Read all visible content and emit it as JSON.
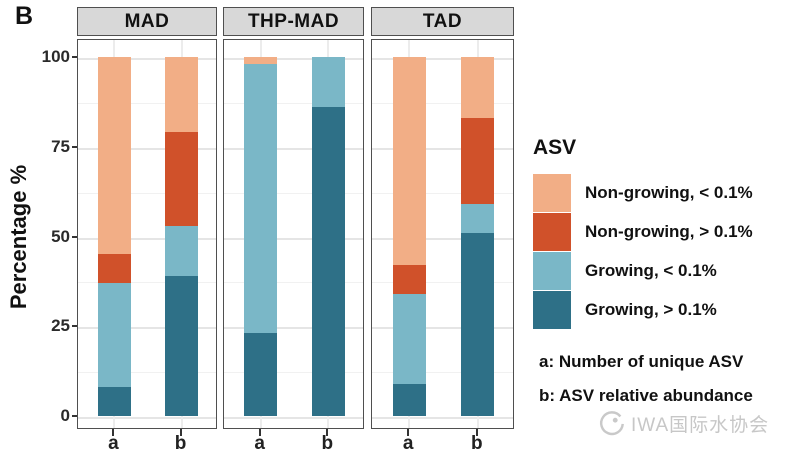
{
  "panel_label": "B",
  "notes": [
    "a: Number of unique ASV",
    "b: ASV relative abundance"
  ],
  "watermark": {
    "icon": "iwa-swirl-logo",
    "text": "IWA国际水协会",
    "color": "#c7c7c7"
  },
  "legend": {
    "title": "ASV",
    "items": [
      {
        "label": "Non-growing, < 0.1%",
        "color": "#F2AE86"
      },
      {
        "label": "Non-growing, > 0.1%",
        "color": "#D0512A"
      },
      {
        "label": "Growing, < 0.1%",
        "color": "#7AB7C7"
      },
      {
        "label": "Growing, > 0.1%",
        "color": "#2E7087"
      }
    ]
  },
  "chart_data": {
    "type": "bar",
    "stacked": true,
    "title": "",
    "ylabel": "Percentage %",
    "ylim": [
      0,
      100
    ],
    "yticks": [
      0,
      25,
      50,
      75,
      100
    ],
    "categories": [
      "a",
      "b"
    ],
    "legend_position": "right",
    "grid": {
      "major": true,
      "minor": true
    },
    "series_bottom_to_top": [
      {
        "name": "Growing, > 0.1%",
        "color": "#2E7087"
      },
      {
        "name": "Growing, < 0.1%",
        "color": "#7AB7C7"
      },
      {
        "name": "Non-growing, > 0.1%",
        "color": "#D0512A"
      },
      {
        "name": "Non-growing, < 0.1%",
        "color": "#F2AE86"
      }
    ],
    "facets": [
      {
        "label": "MAD",
        "bars": [
          {
            "x": "a",
            "values": [
              8,
              29,
              8,
              55
            ]
          },
          {
            "x": "b",
            "values": [
              39,
              14,
              26,
              21
            ]
          }
        ]
      },
      {
        "label": "THP-MAD",
        "bars": [
          {
            "x": "a",
            "values": [
              23,
              75,
              0,
              2
            ]
          },
          {
            "x": "b",
            "values": [
              86,
              14,
              0,
              0
            ]
          }
        ]
      },
      {
        "label": "TAD",
        "bars": [
          {
            "x": "a",
            "values": [
              9,
              25,
              8,
              58
            ]
          },
          {
            "x": "b",
            "values": [
              51,
              8,
              24,
              17
            ]
          }
        ]
      }
    ]
  }
}
